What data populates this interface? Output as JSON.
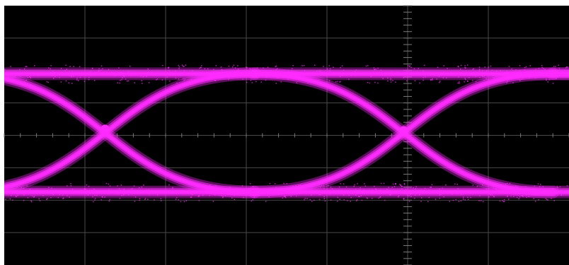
{
  "chart_data": {
    "type": "scatter",
    "title": "",
    "xlabel": "",
    "ylabel": "",
    "grid": true,
    "xlim": [
      0,
      7
    ],
    "ylim": [
      -4,
      4
    ],
    "legend": "none",
    "x_divisions": 7,
    "y_divisions": 8,
    "colors": {
      "screen": "#000000",
      "frame": "#ffffff",
      "grid": "#4a4a4a",
      "trace": "#ff2bff"
    },
    "levels": {
      "high": 1.9,
      "low": -1.75
    },
    "series": [
      {
        "points": [
          [
            1.25,
            0.2
          ],
          [
            4.95,
            0.15
          ]
        ]
      }
    ]
  }
}
